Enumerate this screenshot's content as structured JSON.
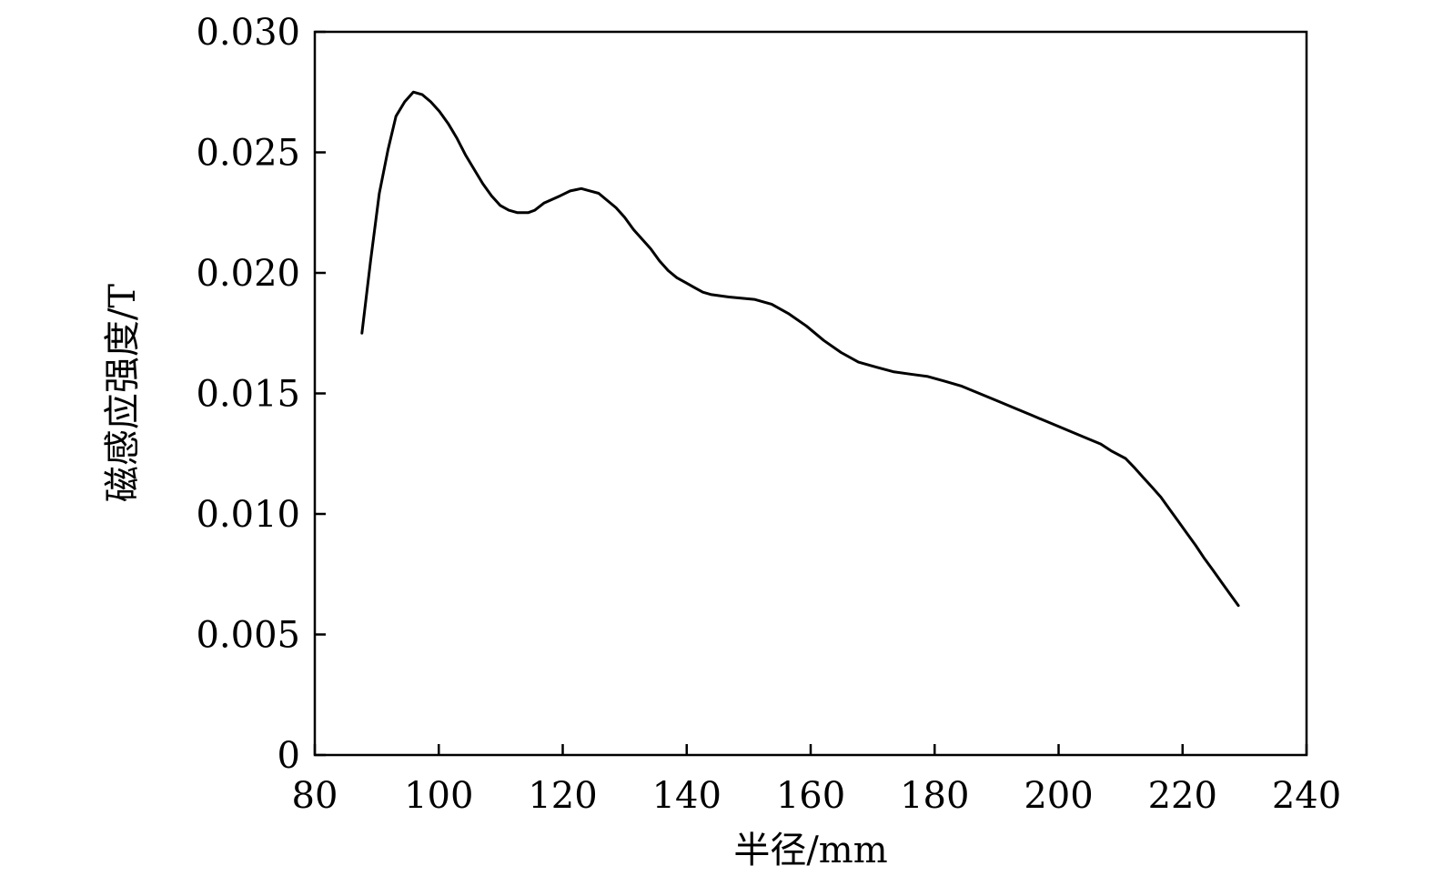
{
  "chart_data": {
    "type": "line",
    "title": "",
    "xlabel": "半径/mm",
    "ylabel": "磁感应强度/T",
    "xlim": [
      80,
      240
    ],
    "ylim": [
      0,
      0.03
    ],
    "x_ticks": [
      80,
      100,
      120,
      140,
      160,
      180,
      200,
      220,
      240
    ],
    "x_tick_labels": [
      "80",
      "100",
      "120",
      "140",
      "160",
      "180",
      "200",
      "220",
      "240"
    ],
    "y_ticks": [
      0,
      0.005,
      0.01,
      0.015,
      0.02,
      0.025,
      0.03
    ],
    "y_tick_labels": [
      "0",
      "0.005",
      "0.010",
      "0.015",
      "0.020",
      "0.025",
      "0.030"
    ],
    "grid": false,
    "line_color": "#000000",
    "series": [
      {
        "x": [
          87.6,
          89,
          90.4,
          91.8,
          93.1,
          94.5,
          95.9,
          97.3,
          98.7,
          100.1,
          101.5,
          102.9,
          104.3,
          105.7,
          107.1,
          108.5,
          109.9,
          111.3,
          112.7,
          114.4,
          115.5,
          117.0,
          119.6,
          121.2,
          123.0,
          124.4,
          125.8,
          127.2,
          128.6,
          130.0,
          131.4,
          132.8,
          134.2,
          135.6,
          137.0,
          138.4,
          139.8,
          141.2,
          142.6,
          144.0,
          146.8,
          150.9,
          153.7,
          156.5,
          159.3,
          162.1,
          164.9,
          167.7,
          170.5,
          173.3,
          176.1,
          178.9,
          181.7,
          184.4,
          187.2,
          190.0,
          192.8,
          195.6,
          198.4,
          201.2,
          204.0,
          206.8,
          208.6,
          210.8,
          212.3,
          213.7,
          215.1,
          216.5,
          217.9,
          219.3,
          220.7,
          222.1,
          223.4,
          224.8,
          226.2,
          227.6,
          229.0
        ],
        "y": [
          0.0175,
          0.0205,
          0.0233,
          0.0251,
          0.0265,
          0.0271,
          0.0275,
          0.0274,
          0.0271,
          0.0267,
          0.0262,
          0.0256,
          0.0249,
          0.0243,
          0.0237,
          0.0232,
          0.0228,
          0.0226,
          0.0225,
          0.0225,
          0.0226,
          0.0229,
          0.0232,
          0.0234,
          0.0235,
          0.0234,
          0.0233,
          0.023,
          0.0227,
          0.0223,
          0.0218,
          0.0214,
          0.021,
          0.0205,
          0.0201,
          0.0198,
          0.0196,
          0.0194,
          0.0192,
          0.0191,
          0.019,
          0.0189,
          0.0187,
          0.0183,
          0.0178,
          0.0172,
          0.0167,
          0.0163,
          0.0161,
          0.0159,
          0.0158,
          0.0157,
          0.0155,
          0.0153,
          0.015,
          0.0147,
          0.0144,
          0.0141,
          0.0138,
          0.0135,
          0.0132,
          0.0129,
          0.0126,
          0.0123,
          0.0119,
          0.0115,
          0.0111,
          0.0107,
          0.0102,
          0.0097,
          0.0092,
          0.0087,
          0.0082,
          0.0077,
          0.0072,
          0.0067,
          0.0062
        ]
      }
    ]
  }
}
